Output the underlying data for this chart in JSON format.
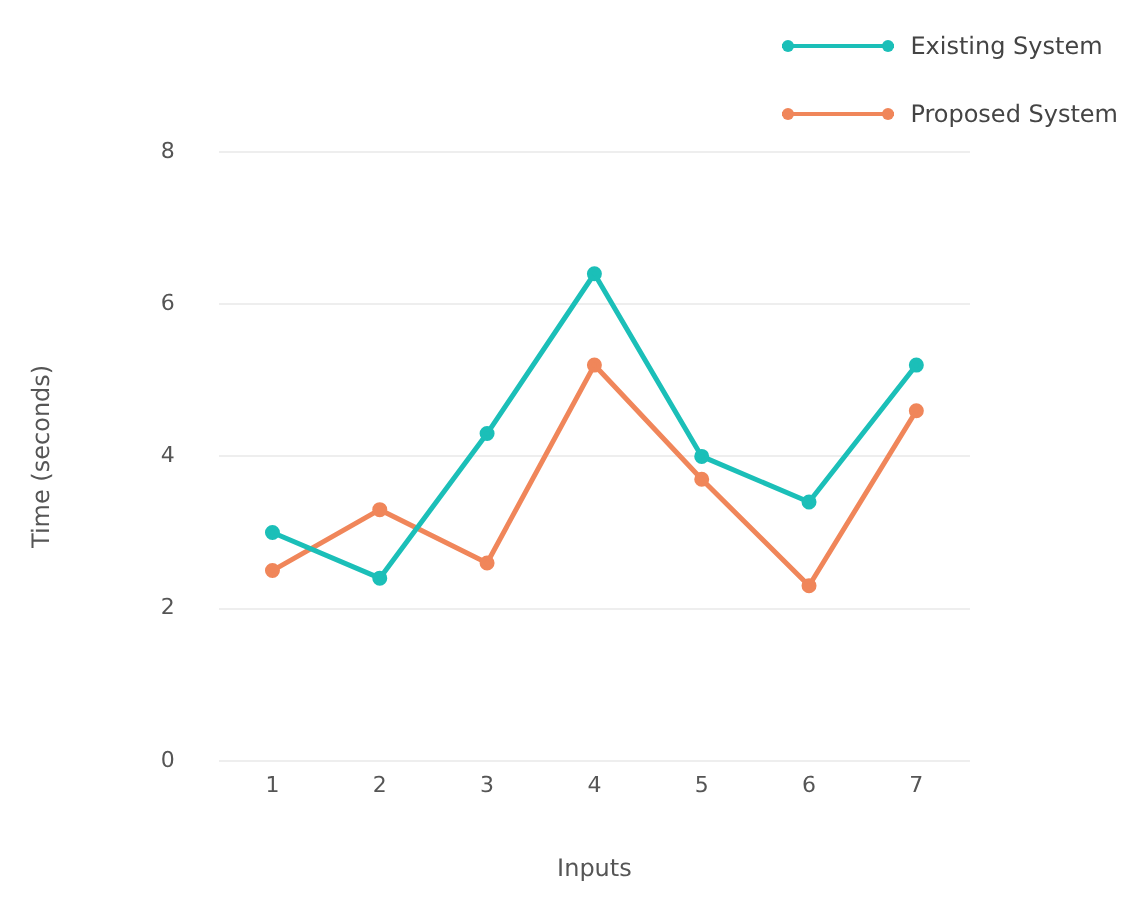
{
  "chart_data": {
    "type": "line",
    "xlabel": "Inputs",
    "ylabel": "Time (seconds)",
    "categories": [
      "1",
      "2",
      "3",
      "4",
      "5",
      "6",
      "7"
    ],
    "series": [
      {
        "name": "Existing System",
        "color": "#1bbfb8",
        "values": [
          3.0,
          2.4,
          4.3,
          6.4,
          4.0,
          3.4,
          5.2
        ]
      },
      {
        "name": "Proposed System",
        "color": "#f0865a",
        "values": [
          2.5,
          3.3,
          2.6,
          5.2,
          3.7,
          2.3,
          4.6
        ]
      }
    ],
    "ylim": [
      0,
      8
    ],
    "yticks": [
      0,
      2,
      4,
      6,
      8
    ],
    "grid": "y",
    "legend": "top right",
    "marker": "circle",
    "line_style": "solid"
  }
}
